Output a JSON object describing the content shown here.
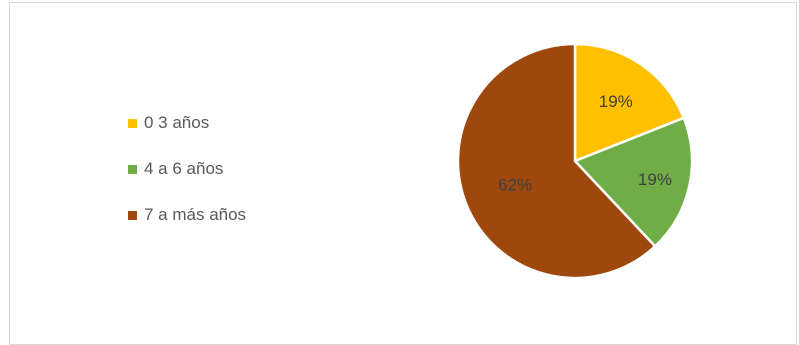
{
  "chart_data": {
    "type": "pie",
    "title": "",
    "legend_position": "left",
    "slices": [
      {
        "label": "0 3 años",
        "value": 19,
        "value_label": "19%",
        "color": "#FFC000"
      },
      {
        "label": "4 a 6 años",
        "value": 19,
        "value_label": "19%",
        "color": "#70AD47"
      },
      {
        "label": "7 a más años",
        "value": 62,
        "value_label": "62%",
        "color": "#9E480E"
      }
    ]
  }
}
